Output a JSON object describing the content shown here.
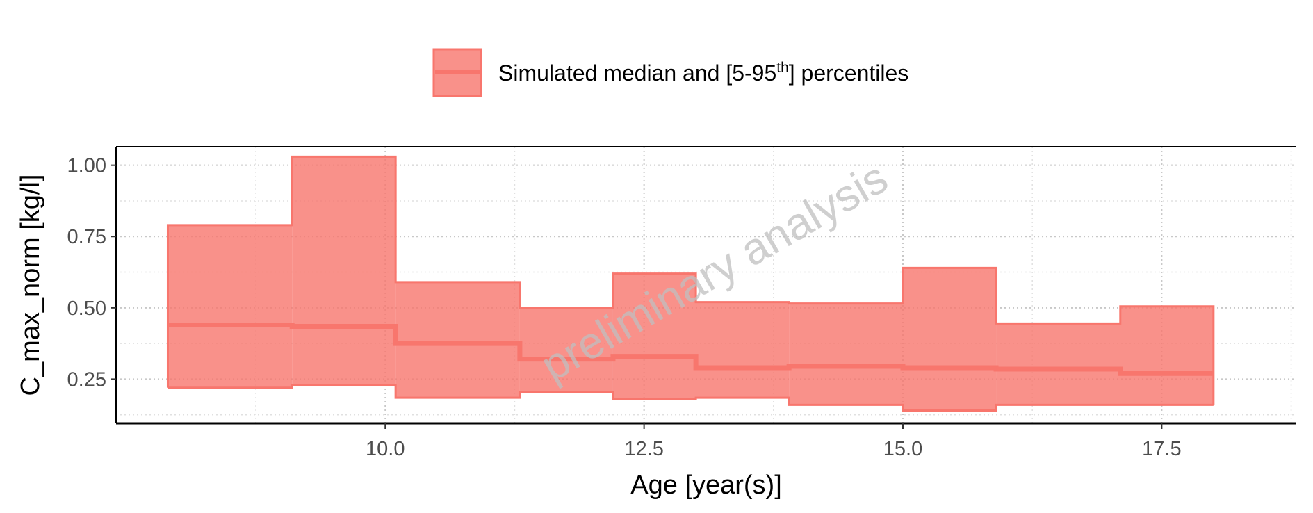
{
  "chart_data": {
    "type": "area",
    "title": "",
    "xlabel": "Age [year(s)]",
    "ylabel": "C_max_norm [kg/l]",
    "xlim": [
      7.4,
      18.8
    ],
    "ylim": [
      0.095,
      1.065
    ],
    "x_ticks": [
      10.0,
      12.5,
      15.0,
      17.5
    ],
    "x_tick_labels": [
      "10.0",
      "12.5",
      "15.0",
      "17.5"
    ],
    "y_ticks": [
      0.25,
      0.5,
      0.75,
      1.0
    ],
    "y_tick_labels": [
      "0.25",
      "0.50",
      "0.75",
      "1.00"
    ],
    "grid": true,
    "legend_position": "top",
    "watermark": "preliminary analysis",
    "legend": {
      "label_pre": "Simulated median and [5-95",
      "label_sup": "th",
      "label_post": "] percentiles"
    },
    "colors": {
      "fill": "#f8766d",
      "fill_opacity": 0.8,
      "line": "#f8766d"
    },
    "series": [
      {
        "name": "Simulated median and [5-95th] percentiles",
        "bins": [
          {
            "x_start": 7.9,
            "x_end": 9.1,
            "median": 0.44,
            "p5": 0.22,
            "p95": 0.79
          },
          {
            "x_start": 9.1,
            "x_end": 10.1,
            "median": 0.435,
            "p5": 0.23,
            "p95": 1.03
          },
          {
            "x_start": 10.1,
            "x_end": 11.3,
            "median": 0.375,
            "p5": 0.185,
            "p95": 0.59
          },
          {
            "x_start": 11.3,
            "x_end": 12.2,
            "median": 0.32,
            "p5": 0.205,
            "p95": 0.5
          },
          {
            "x_start": 12.2,
            "x_end": 13.0,
            "median": 0.33,
            "p5": 0.18,
            "p95": 0.62
          },
          {
            "x_start": 13.0,
            "x_end": 13.9,
            "median": 0.29,
            "p5": 0.185,
            "p95": 0.52
          },
          {
            "x_start": 13.9,
            "x_end": 15.0,
            "median": 0.295,
            "p5": 0.16,
            "p95": 0.515
          },
          {
            "x_start": 15.0,
            "x_end": 15.9,
            "median": 0.29,
            "p5": 0.14,
            "p95": 0.64
          },
          {
            "x_start": 15.9,
            "x_end": 17.1,
            "median": 0.285,
            "p5": 0.16,
            "p95": 0.445
          },
          {
            "x_start": 17.1,
            "x_end": 18.0,
            "median": 0.27,
            "p5": 0.16,
            "p95": 0.505
          }
        ]
      }
    ]
  }
}
